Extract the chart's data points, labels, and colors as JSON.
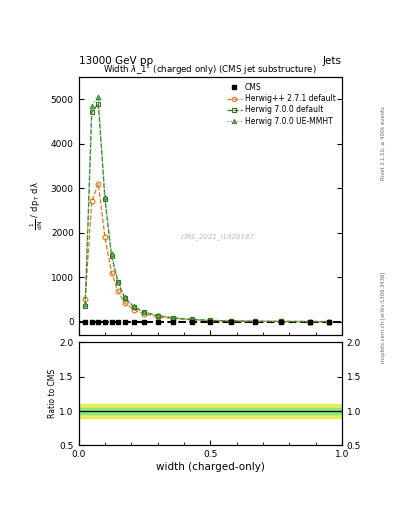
{
  "title_top": "13000 GeV pp",
  "title_right": "Jets",
  "plot_title": "Width $\\lambda$_1$^1$ (charged only) (CMS jet substructure)",
  "xlabel": "width (charged-only)",
  "ylabel_ratio": "Ratio to CMS",
  "right_label_top": "Rivet 3.1.10, ≥ 400k events",
  "right_label_bot": "mcplots.cern.ch [arXiv:1306.3436]",
  "watermark": "CMS_2021_I1920187",
  "legend": [
    "CMS",
    "Herwig++ 2.7.1 default",
    "Herwig 7.0.0 default",
    "Herwig 7.0.0 UE-MMHT"
  ],
  "x_data": [
    0.025,
    0.05,
    0.075,
    0.1,
    0.125,
    0.15,
    0.175,
    0.21,
    0.25,
    0.3,
    0.36,
    0.43,
    0.5,
    0.58,
    0.67,
    0.77,
    0.88,
    0.95
  ],
  "herwig_pp_y": [
    500,
    2700,
    3100,
    1900,
    1100,
    680,
    420,
    270,
    170,
    110,
    68,
    40,
    22,
    12,
    6,
    3,
    1,
    0.5
  ],
  "herwig7_def_y": [
    350,
    4700,
    4900,
    2750,
    1480,
    880,
    530,
    330,
    210,
    135,
    82,
    50,
    28,
    16,
    8,
    4,
    1.5,
    0.5
  ],
  "herwig7_ue_y": [
    400,
    4850,
    5050,
    2800,
    1520,
    900,
    545,
    340,
    215,
    138,
    85,
    52,
    30,
    17,
    8.5,
    4.2,
    1.7,
    0.6
  ],
  "xlim": [
    0,
    1.0
  ],
  "ylim_main": [
    -300,
    5500
  ],
  "ylim_ratio": [
    0.5,
    2.0
  ],
  "yticks_main": [
    0,
    1000,
    2000,
    3000,
    4000,
    5000
  ],
  "yticks_ratio": [
    0.5,
    1.0,
    1.5,
    2.0
  ],
  "color_cms": "#000000",
  "color_herwig_pp": "#e07820",
  "color_herwig7_def": "#3a6e20",
  "color_herwig7_ue": "#50c060",
  "color_ratio_green": "#80e880",
  "color_ratio_yellow": "#e8e840",
  "background": "#ffffff"
}
